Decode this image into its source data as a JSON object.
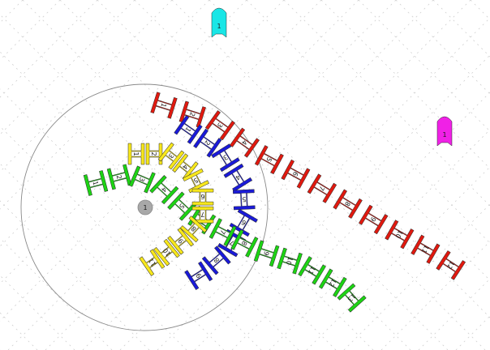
{
  "colors": {
    "background": "#ffffff",
    "grid": "#cfcfcf",
    "circle": "#8a8a8a",
    "outline": "#2a2a2a",
    "center": "#a8a8a8",
    "red": "#e0190f",
    "blue": "#1a1ad8",
    "green": "#1dd314",
    "yellow": "#f7e71c",
    "cyan": "#19e6e6",
    "magenta": "#f021e6"
  },
  "markers": [
    {
      "name": "cyan-marker",
      "color": "cyan",
      "label": "1"
    },
    {
      "name": "magenta-marker",
      "color": "magenta",
      "label": "1"
    }
  ],
  "center_marker": {
    "label": "1"
  },
  "chains": [
    {
      "name": "red",
      "color": "red",
      "labels": [
        "1",
        "2",
        "3",
        "4",
        "5",
        "6",
        "7",
        "8",
        "9",
        "10",
        "11",
        "12",
        "13"
      ]
    },
    {
      "name": "blue",
      "color": "blue",
      "labels": [
        "1",
        "2",
        "3",
        "4",
        "5",
        "6",
        "7",
        "8",
        "9"
      ]
    },
    {
      "name": "green",
      "color": "green",
      "labels": [
        "1",
        "2",
        "3",
        "4",
        "5",
        "6",
        "7",
        "8",
        "9",
        "10",
        "11",
        "12",
        "13"
      ]
    },
    {
      "name": "yellow",
      "color": "yellow",
      "labels": [
        "1",
        "2",
        "3",
        "4",
        "5",
        "6",
        "7",
        "8",
        "9",
        "10",
        "11",
        "12"
      ]
    }
  ]
}
